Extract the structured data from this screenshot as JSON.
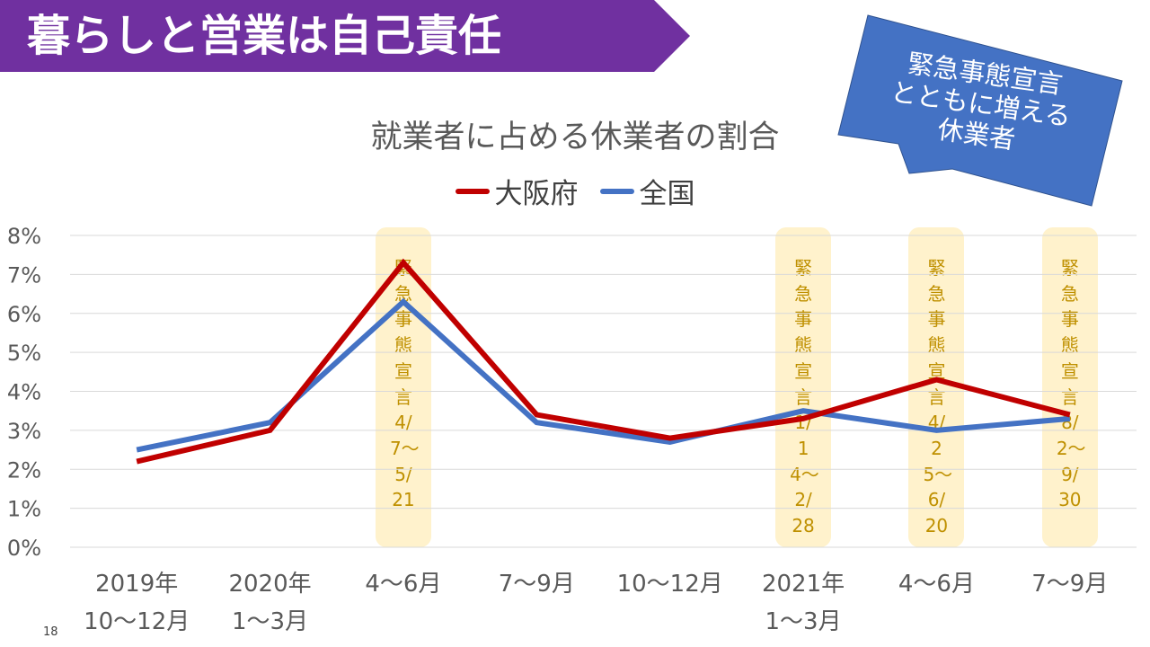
{
  "slide": {
    "title": "暮らしと営業は自己責任",
    "page_number": "18"
  },
  "callout": {
    "lines": [
      "緊急事態宣言",
      "とともに増える",
      "休業者"
    ],
    "color": "#4472c4"
  },
  "chart_data": {
    "type": "line",
    "title": "就業者に占める休業者の割合",
    "categories": [
      [
        "2019年",
        "10〜12月"
      ],
      [
        "2020年",
        "1〜3月"
      ],
      [
        "4〜6月"
      ],
      [
        "7〜9月"
      ],
      [
        "10〜12月"
      ],
      [
        "2021年",
        "1〜3月"
      ],
      [
        "4〜6月"
      ],
      [
        "7〜9月"
      ]
    ],
    "series": [
      {
        "name": "大阪府",
        "color": "#c00000",
        "values": [
          2.2,
          3.0,
          7.3,
          3.4,
          2.8,
          3.3,
          4.3,
          3.4
        ]
      },
      {
        "name": "全国",
        "color": "#4472c4",
        "values": [
          2.5,
          3.2,
          6.3,
          3.2,
          2.7,
          3.5,
          3.0,
          3.3
        ]
      }
    ],
    "y_ticks": [
      "0%",
      "1%",
      "2%",
      "3%",
      "4%",
      "5%",
      "6%",
      "7%",
      "8%"
    ],
    "ylim": [
      0,
      8
    ],
    "grid": true,
    "legend_position": "top-center",
    "annotations": [
      {
        "category_index": 2,
        "text": "緊急事態宣言4/7〜5/21",
        "color": "#fff2cc"
      },
      {
        "category_index": 5,
        "text": "緊急事態宣言1/14〜2/28",
        "color": "#fff2cc"
      },
      {
        "category_index": 6,
        "text": "緊急事態宣言4/25〜6/20",
        "color": "#fff2cc"
      },
      {
        "category_index": 7,
        "text": "緊急事態宣言8/2〜9/30",
        "color": "#fff2cc"
      }
    ]
  }
}
